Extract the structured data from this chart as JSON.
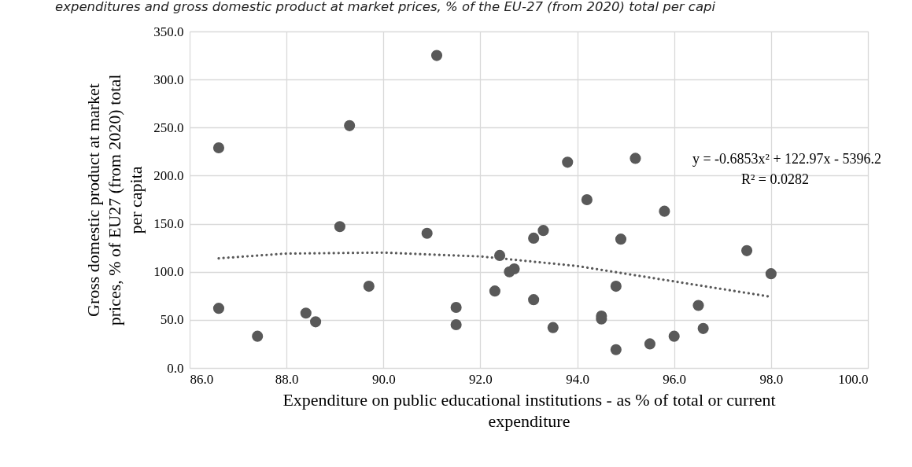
{
  "chart_data": {
    "type": "scatter",
    "title": "expenditures and gross domestic product at market prices, % of the EU-27 (from 2020) total per capi",
    "xlabel": "Expenditure on public educational institutions - as % of total or current expenditure",
    "ylabel": "Gross domestic product at market prices, % of EU27 (from 2020) total per capita",
    "annotations": [
      "y = -0.6853x² + 122.97x - 5396.2",
      "R² = 0.0282"
    ],
    "xlim": [
      86,
      100
    ],
    "xticks": [
      {
        "value": 86,
        "label": "86.0"
      },
      {
        "value": 88,
        "label": "88.0"
      },
      {
        "value": 90,
        "label": "90.0"
      },
      {
        "value": 92,
        "label": "92.0"
      },
      {
        "value": 94,
        "label": "94.0"
      },
      {
        "value": 96,
        "label": "96.0"
      },
      {
        "value": 98,
        "label": "98.0"
      },
      {
        "value": 100,
        "label": "100.0"
      }
    ],
    "ylim": [
      0,
      350
    ],
    "yticks": [
      {
        "value": 0,
        "label": "0.0"
      },
      {
        "value": 50,
        "label": "50.0"
      },
      {
        "value": 100,
        "label": "100.0"
      },
      {
        "value": 150,
        "label": "150.0"
      },
      {
        "value": 200,
        "label": "200.0"
      },
      {
        "value": 250,
        "label": "250.0"
      },
      {
        "value": 300,
        "label": "300.0"
      },
      {
        "value": 350,
        "label": "350.0"
      }
    ],
    "grid": true,
    "marker": "circle",
    "series": [
      {
        "type": "scatter",
        "color": "#595959",
        "x": [
          86.6,
          86.6,
          87.4,
          88.4,
          88.6,
          89.1,
          89.3,
          89.7,
          90.9,
          91.1,
          91.5,
          91.5,
          92.3,
          92.4,
          92.6,
          92.7,
          93.1,
          93.1,
          93.3,
          93.5,
          93.8,
          94.2,
          94.5,
          94.5,
          94.8,
          94.8,
          94.9,
          95.2,
          95.5,
          95.8,
          96.0,
          96.5,
          96.6,
          97.5,
          98.0
        ],
        "values": [
          229,
          62,
          33,
          57,
          48,
          147,
          252,
          85,
          140,
          325,
          63,
          45,
          80,
          117,
          100,
          103,
          135,
          71,
          143,
          42,
          214,
          175,
          54,
          51,
          85,
          19,
          134,
          218,
          25,
          163,
          33,
          65,
          41,
          122,
          98
        ]
      },
      {
        "type": "line",
        "color": "#595959",
        "line_style": "dotted",
        "marker": "none",
        "x": [
          86.6,
          88,
          90,
          92,
          94,
          96,
          98
        ],
        "values": [
          114,
          119,
          120,
          116,
          106,
          90,
          74
        ]
      }
    ]
  }
}
